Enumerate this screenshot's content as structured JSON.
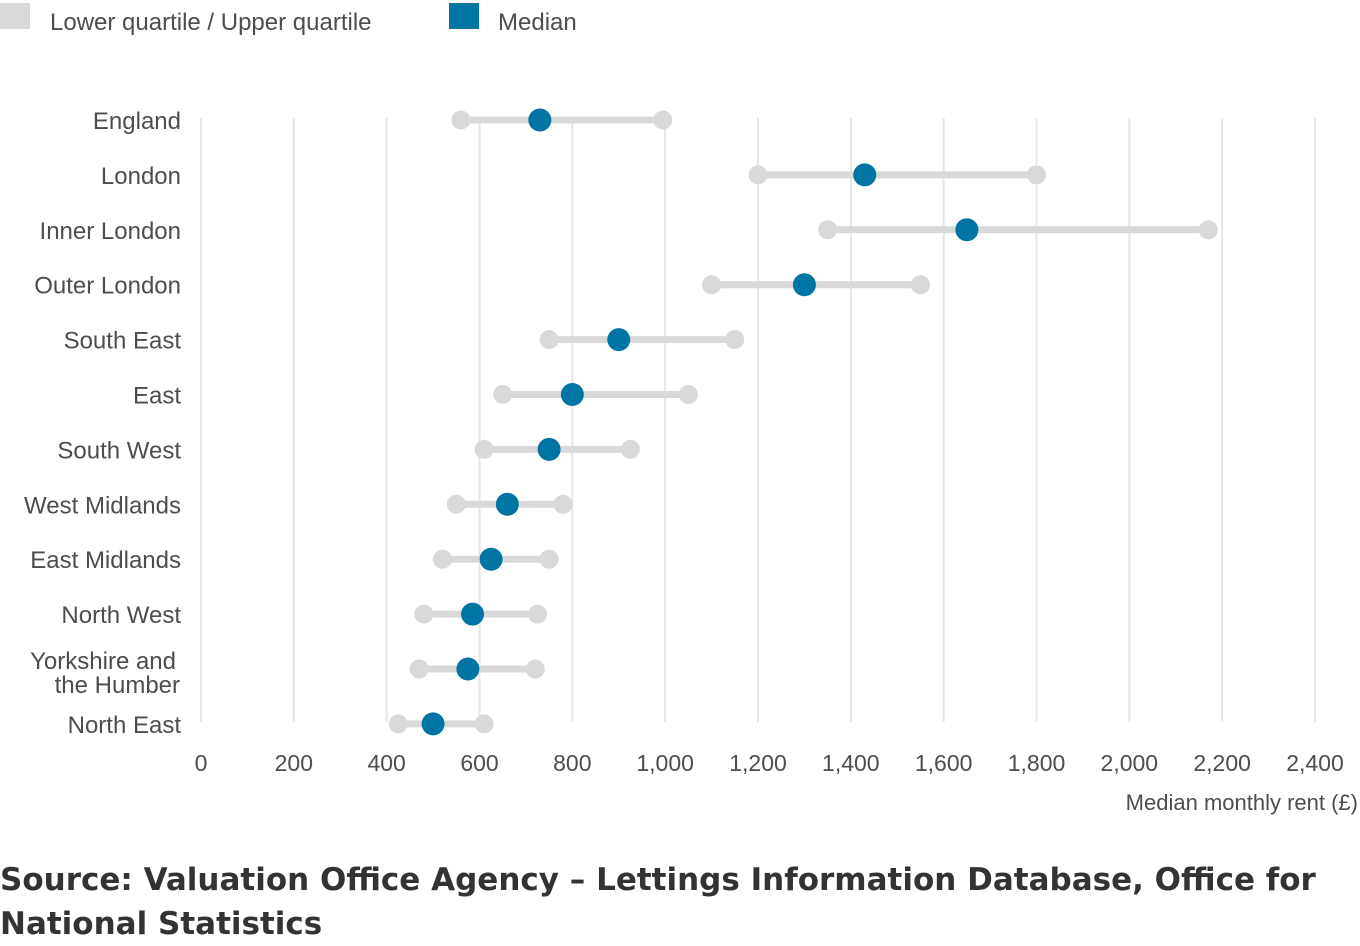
{
  "legend": [
    {
      "label": "Lower quartile / Upper quartile",
      "color": "#d9d9d9"
    },
    {
      "label": "Median",
      "color": "#0075a3"
    }
  ],
  "chart_data": {
    "type": "dot-range",
    "categories": [
      "England",
      "London",
      "Inner London",
      "Outer London",
      "South East",
      "East",
      "South West",
      "West Midlands",
      "East Midlands",
      "North West",
      "Yorkshire and the Humber",
      "North East"
    ],
    "series": [
      {
        "name": "Lower quartile",
        "values": [
          560,
          1200,
          1350,
          1100,
          750,
          650,
          610,
          550,
          520,
          480,
          470,
          425
        ]
      },
      {
        "name": "Median",
        "values": [
          730,
          1430,
          1650,
          1300,
          900,
          800,
          750,
          660,
          625,
          585,
          575,
          500
        ]
      },
      {
        "name": "Upper quartile",
        "values": [
          995,
          1800,
          2170,
          1550,
          1150,
          1050,
          925,
          780,
          750,
          725,
          720,
          610
        ]
      }
    ],
    "xlabel": "Median monthly rent (£)",
    "xlim": [
      0,
      2400
    ],
    "xticks": [
      0,
      200,
      400,
      600,
      800,
      1000,
      1200,
      1400,
      1600,
      1800,
      2000,
      2200,
      2400
    ],
    "xtick_labels": [
      "0",
      "200",
      "400",
      "600",
      "800",
      "1,000",
      "1,200",
      "1,400",
      "1,600",
      "1,800",
      "2,000",
      "2,200",
      "2,400"
    ],
    "grid": true,
    "legend_position": "top-left"
  },
  "source": "Source: Valuation Office Agency – Lettings Information Database, Office for National Statistics"
}
